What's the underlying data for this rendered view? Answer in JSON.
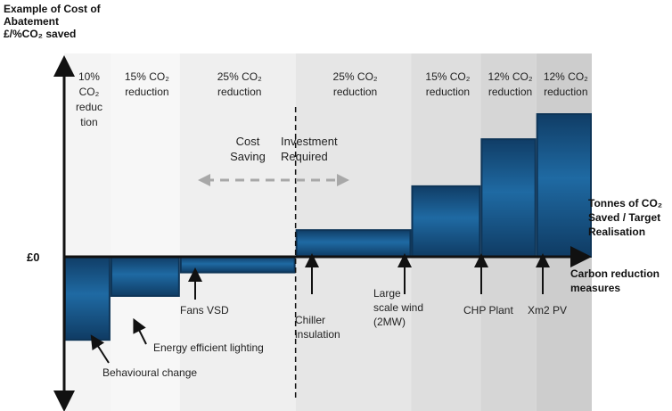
{
  "chart_data": {
    "type": "bar",
    "title": "",
    "ylabel_lines": [
      "Example of Cost of",
      "Abatement",
      "£/%CO₂ saved"
    ],
    "xlabel_upper_lines": [
      "Tonnes of CO₂",
      "Saved / Target",
      "Realisation"
    ],
    "xlabel_lower_lines": [
      "Carbon reduction",
      "measures"
    ],
    "zero_label": "£0",
    "ylim": [
      -100,
      100
    ],
    "bands": [
      {
        "lines": [
          "10%",
          "CO₂",
          "reduc",
          "tion"
        ],
        "share_pct": 10
      },
      {
        "lines": [
          "15% CO₂",
          "reduction"
        ],
        "share_pct": 15
      },
      {
        "lines": [
          "25% CO₂",
          "reduction"
        ],
        "share_pct": 25
      },
      {
        "lines": [
          "25% CO₂",
          "reduction"
        ],
        "share_pct": 25
      },
      {
        "lines": [
          "15% CO₂",
          "reduction"
        ],
        "share_pct": 15
      },
      {
        "lines": [
          "12% CO₂",
          "reduction"
        ],
        "share_pct": 12
      },
      {
        "lines": [
          "12% CO₂",
          "reduction"
        ],
        "share_pct": 12
      }
    ],
    "categories": [
      "Behavioural change",
      "Energy efficient lighting",
      "Fans VSD",
      "Chiller insulation",
      "Large scale wind (2MW)",
      "CHP Plant",
      "Xm2 PV"
    ],
    "measure_labels": [
      [
        "Behavioural change"
      ],
      [
        "Energy efficient lighting"
      ],
      [
        "Fans VSD"
      ],
      [
        "Chiller",
        "insulation"
      ],
      [
        "Large",
        "scale wind",
        "(2MW)"
      ],
      [
        "CHP Plant"
      ],
      [
        "Xm2 PV"
      ]
    ],
    "values": [
      -53,
      -25,
      -10,
      17,
      45,
      75,
      91
    ],
    "saving_label_lines": [
      "Cost",
      "Saving"
    ],
    "investment_label_lines": [
      "Investment",
      "Required"
    ],
    "colors": {
      "bar_top": "#103d66",
      "bar_mid": "#1f6aa3",
      "bar_bottom": "#0f3b63",
      "bar_border": "#0e3558",
      "bands": [
        "#f4f4f4",
        "#f7f7f7",
        "#efefef",
        "#e6e6e6",
        "#dedede",
        "#d6d6d6",
        "#cdcdcd"
      ]
    }
  }
}
